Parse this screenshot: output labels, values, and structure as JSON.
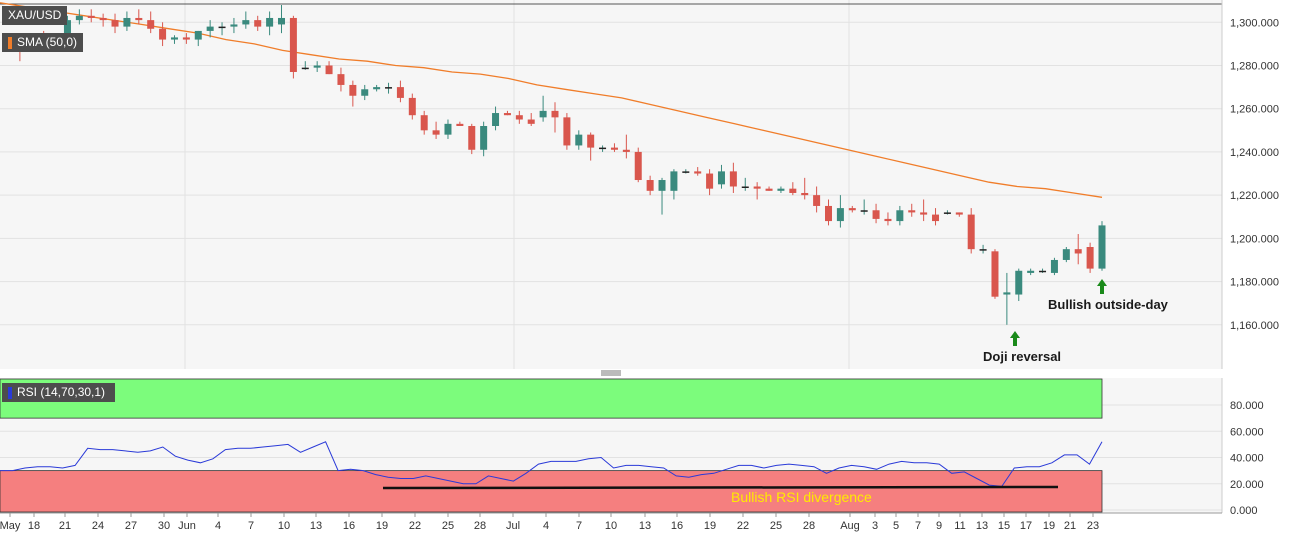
{
  "legend": {
    "symbol": "XAU/USD",
    "sma_label": "SMA (50,0)",
    "rsi_label": "RSI (14,70,30,1)"
  },
  "annotations": {
    "doji": "Doji reversal",
    "outside_day": "Bullish outside-day",
    "rsi_divergence": "Bullish RSI divergence"
  },
  "colors": {
    "up": "#3a8a7e",
    "down": "#d9564d",
    "sma": "#f07d2a",
    "rsi": "#2a3ad8",
    "overbought": "#7cfc7c",
    "oversold": "#f57f7f",
    "arrow": "#1a8a1a"
  },
  "chart_data": [
    {
      "type": "candlestick",
      "title": "XAU/USD",
      "ylim": [
        1140,
        1308
      ],
      "y_ticks": [
        "1,300.000",
        "1,280.000",
        "1,260.000",
        "1,240.000",
        "1,220.000",
        "1,200.000",
        "1,180.000",
        "1,160.000"
      ],
      "y_tick_values": [
        1300,
        1280,
        1260,
        1240,
        1220,
        1200,
        1180,
        1160
      ],
      "x_ticks": [
        "May",
        "18",
        "21",
        "24",
        "27",
        "30",
        "Jun",
        "4",
        "7",
        "10",
        "13",
        "16",
        "19",
        "22",
        "25",
        "28",
        "Jul",
        "4",
        "7",
        "10",
        "13",
        "16",
        "19",
        "22",
        "25",
        "28",
        "Aug",
        "3",
        "5",
        "7",
        "9",
        "11",
        "13",
        "15",
        "17",
        "19",
        "21",
        "23"
      ],
      "candles_ohlc": [
        [
          1291,
          1294,
          1288,
          1291
        ],
        [
          1291,
          1293,
          1282,
          1290
        ],
        [
          1290,
          1295,
          1287,
          1292
        ],
        [
          1292,
          1296,
          1289,
          1291
        ],
        [
          1291,
          1294,
          1287,
          1290
        ],
        [
          1290,
          1303,
          1289,
          1301
        ],
        [
          1301,
          1306,
          1299,
          1303
        ],
        [
          1303,
          1306,
          1300,
          1302
        ],
        [
          1302,
          1304,
          1298,
          1301
        ],
        [
          1301,
          1304,
          1295,
          1298
        ],
        [
          1298,
          1305,
          1296,
          1302
        ],
        [
          1302,
          1306,
          1299,
          1301
        ],
        [
          1301,
          1305,
          1295,
          1297
        ],
        [
          1297,
          1300,
          1289,
          1292
        ],
        [
          1292,
          1294,
          1290,
          1293
        ],
        [
          1293,
          1295,
          1290,
          1292
        ],
        [
          1292,
          1296,
          1289,
          1296
        ],
        [
          1296,
          1301,
          1293,
          1298
        ],
        [
          1298,
          1300,
          1294,
          1298
        ],
        [
          1298,
          1302,
          1295,
          1299
        ],
        [
          1299,
          1305,
          1297,
          1301
        ],
        [
          1301,
          1303,
          1296,
          1298
        ],
        [
          1298,
          1305,
          1294,
          1302
        ],
        [
          1299,
          1308,
          1295,
          1302
        ],
        [
          1302,
          1303,
          1274,
          1277
        ],
        [
          1279,
          1282,
          1278,
          1279
        ],
        [
          1279,
          1282,
          1277,
          1280
        ],
        [
          1280,
          1282,
          1276,
          1276
        ],
        [
          1276,
          1279,
          1268,
          1271
        ],
        [
          1271,
          1273,
          1261,
          1266
        ],
        [
          1266,
          1271,
          1264,
          1269
        ],
        [
          1269,
          1271,
          1268,
          1270
        ],
        [
          1270,
          1272,
          1267,
          1270
        ],
        [
          1270,
          1273,
          1263,
          1265
        ],
        [
          1265,
          1267,
          1255,
          1257
        ],
        [
          1257,
          1259,
          1248,
          1250
        ],
        [
          1250,
          1254,
          1246,
          1248
        ],
        [
          1248,
          1255,
          1246,
          1253
        ],
        [
          1253,
          1254,
          1252,
          1252
        ],
        [
          1252,
          1253,
          1239,
          1241
        ],
        [
          1241,
          1254,
          1238,
          1252
        ],
        [
          1252,
          1261,
          1250,
          1258
        ],
        [
          1258,
          1259,
          1257,
          1257
        ],
        [
          1257,
          1259,
          1253,
          1255
        ],
        [
          1255,
          1258,
          1252,
          1253
        ],
        [
          1256,
          1266,
          1254,
          1259
        ],
        [
          1259,
          1263,
          1249,
          1256
        ],
        [
          1256,
          1258,
          1241,
          1243
        ],
        [
          1243,
          1250,
          1241,
          1248
        ],
        [
          1248,
          1249,
          1236,
          1242
        ],
        [
          1242,
          1243,
          1240,
          1242
        ],
        [
          1242,
          1244,
          1240,
          1241
        ],
        [
          1241,
          1248,
          1237,
          1240
        ],
        [
          1240,
          1242,
          1226,
          1227
        ],
        [
          1227,
          1229,
          1220,
          1222
        ],
        [
          1222,
          1228,
          1211,
          1227
        ],
        [
          1222,
          1232,
          1218,
          1231
        ],
        [
          1231,
          1232,
          1230,
          1231
        ],
        [
          1231,
          1233,
          1229,
          1230
        ],
        [
          1230,
          1232,
          1220,
          1223
        ],
        [
          1225,
          1234,
          1223,
          1231
        ],
        [
          1231,
          1235,
          1221,
          1224
        ],
        [
          1224,
          1228,
          1222,
          1224
        ],
        [
          1224,
          1226,
          1218,
          1223
        ],
        [
          1223,
          1224,
          1222,
          1222
        ],
        [
          1222,
          1224,
          1221,
          1223
        ],
        [
          1223,
          1226,
          1220,
          1221
        ],
        [
          1221,
          1228,
          1218,
          1220
        ],
        [
          1220,
          1224,
          1212,
          1215
        ],
        [
          1215,
          1218,
          1206,
          1208
        ],
        [
          1208,
          1220,
          1205,
          1214
        ],
        [
          1214,
          1215,
          1212,
          1213
        ],
        [
          1213,
          1218,
          1211,
          1213
        ],
        [
          1213,
          1216,
          1207,
          1209
        ],
        [
          1209,
          1212,
          1206,
          1208
        ],
        [
          1208,
          1215,
          1206,
          1213
        ],
        [
          1213,
          1216,
          1210,
          1212
        ],
        [
          1212,
          1218,
          1208,
          1211
        ],
        [
          1211,
          1214,
          1206,
          1208
        ],
        [
          1212,
          1213,
          1211,
          1212
        ],
        [
          1212,
          1212,
          1210,
          1211
        ],
        [
          1211,
          1214,
          1193,
          1195
        ],
        [
          1195,
          1197,
          1193,
          1195
        ],
        [
          1194,
          1195,
          1172,
          1173
        ],
        [
          1174,
          1184,
          1160,
          1175
        ],
        [
          1174,
          1186,
          1171,
          1185
        ],
        [
          1184,
          1186,
          1183,
          1185
        ],
        [
          1185,
          1186,
          1184,
          1185
        ],
        [
          1184,
          1191,
          1183,
          1190
        ],
        [
          1190,
          1196,
          1189,
          1195
        ],
        [
          1195,
          1202,
          1188,
          1193
        ],
        [
          1196,
          1198,
          1184,
          1186
        ],
        [
          1186,
          1208,
          1185,
          1206
        ]
      ],
      "sma_50": [
        1309,
        1307,
        1305,
        1303,
        1301,
        1299,
        1297,
        1295,
        1292,
        1290,
        1287,
        1285,
        1283,
        1282,
        1280,
        1279,
        1277,
        1276,
        1274,
        1271,
        1269,
        1267,
        1265,
        1262,
        1259,
        1256,
        1253,
        1250,
        1247,
        1244,
        1241,
        1238,
        1235,
        1232,
        1229,
        1226,
        1224,
        1223,
        1221,
        1219
      ]
    },
    {
      "type": "line",
      "title": "RSI (14,70,30,1)",
      "ylim": [
        0,
        80
      ],
      "y_ticks": [
        "80.000",
        "60.000",
        "40.000",
        "20.000",
        "0.000"
      ],
      "y_tick_values": [
        80,
        60,
        40,
        20,
        0
      ],
      "overbought": 70,
      "oversold": 30,
      "series": [
        {
          "values": [
            30,
            30,
            32,
            33,
            33,
            32,
            34,
            47,
            46,
            46,
            45,
            44,
            45,
            48,
            41,
            38,
            36,
            39,
            46,
            47,
            47,
            48,
            49,
            50,
            44,
            48,
            52,
            30,
            31,
            30,
            27,
            25,
            24,
            24,
            26,
            24,
            22,
            20,
            20,
            26,
            24,
            22,
            28,
            35,
            37,
            37,
            37,
            39,
            40,
            32,
            34,
            34,
            33,
            32,
            26,
            25,
            27,
            28,
            31,
            34,
            34,
            32,
            34,
            35,
            34,
            33,
            28,
            32,
            34,
            33,
            31,
            35,
            37,
            36,
            36,
            35,
            28,
            29,
            24,
            19,
            18,
            32,
            33,
            33,
            36,
            42,
            42,
            35,
            52
          ]
        }
      ]
    }
  ]
}
